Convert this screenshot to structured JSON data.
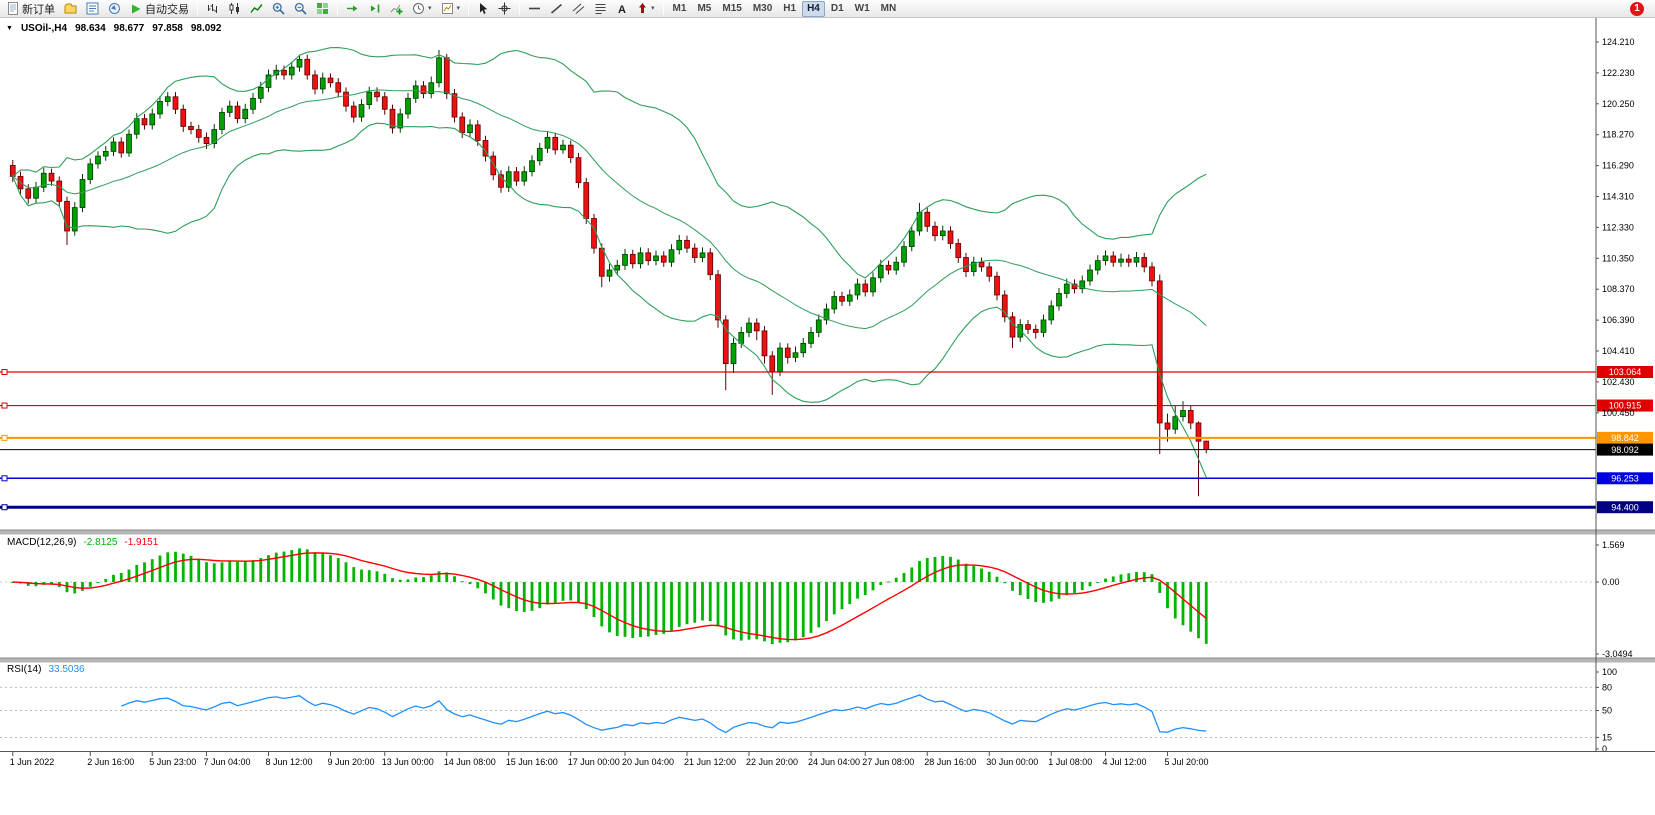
{
  "toolbar": {
    "new_order": "新订单",
    "auto_trading": "自动交易",
    "timeframes": [
      "M1",
      "M5",
      "M15",
      "M30",
      "H1",
      "H4",
      "D1",
      "W1",
      "MN"
    ],
    "active_timeframe": "H4",
    "notification_count": "1",
    "icons": [
      "new-order-document",
      "profiles-folder",
      "market-watch",
      "navigator",
      "auto-trading-play",
      "bar-chart",
      "candlestick-chart",
      "line-chart",
      "zoom-in",
      "zoom-out",
      "tile-windows",
      "auto-scroll",
      "chart-shift",
      "add-indicator",
      "periods-clock",
      "templates",
      "cursor",
      "crosshair",
      "horizontal-line",
      "trendline",
      "equidistant-channel",
      "fibonacci",
      "text",
      "arrows",
      "notification"
    ]
  },
  "chart_header": {
    "symbol_period": "USOil-,H4",
    "open": "98.634",
    "high": "98.677",
    "low": "97.858",
    "close": "98.092"
  },
  "price_axis": {
    "labels": [
      "124.210",
      "122.230",
      "120.250",
      "118.270",
      "116.290",
      "114.310",
      "112.330",
      "110.350",
      "108.370",
      "106.390",
      "104.410",
      "102.430",
      "100.450"
    ]
  },
  "macd_panel": {
    "label": "MACD(12,26,9)",
    "value_main": "-2.8125",
    "value_signal": "-1.9151",
    "axis_labels": [
      "1.569",
      "0.00",
      "-3.0494"
    ]
  },
  "rsi_panel": {
    "label": "RSI(14)",
    "value": "33.5036",
    "axis_labels": [
      "100",
      "80",
      "50",
      "15",
      "0"
    ]
  },
  "time_axis": {
    "labels": [
      {
        "text": "1 Jun 2022",
        "bar": 0
      },
      {
        "text": "2 Jun 16:00",
        "bar": 10
      },
      {
        "text": "5 Jun 23:00",
        "bar": 18
      },
      {
        "text": "7 Jun 04:00",
        "bar": 25
      },
      {
        "text": "8 Jun 12:00",
        "bar": 33
      },
      {
        "text": "9 Jun 20:00",
        "bar": 41
      },
      {
        "text": "13 Jun 00:00",
        "bar": 48
      },
      {
        "text": "14 Jun 08:00",
        "bar": 56
      },
      {
        "text": "15 Jun 16:00",
        "bar": 64
      },
      {
        "text": "17 Jun 00:00",
        "bar": 72
      },
      {
        "text": "20 Jun 04:00",
        "bar": 79
      },
      {
        "text": "21 Jun 12:00",
        "bar": 87
      },
      {
        "text": "22 Jun 20:00",
        "bar": 95
      },
      {
        "text": "24 Jun 04:00",
        "bar": 103
      },
      {
        "text": "27 Jun 08:00",
        "bar": 110
      },
      {
        "text": "28 Jun 16:00",
        "bar": 118
      },
      {
        "text": "30 Jun 00:00",
        "bar": 126
      },
      {
        "text": "1 Jul 08:00",
        "bar": 134
      },
      {
        "text": "4 Jul 12:00",
        "bar": 141
      },
      {
        "text": "5 Jul 20:00",
        "bar": 149
      }
    ]
  },
  "colors": {
    "bull": {
      "fill": "#00a000",
      "border": "#003c00"
    },
    "bear": {
      "fill": "#ee1111",
      "border": "#5d0000"
    },
    "bollinger": "#2e9e5b",
    "macd_histogram": "#00b400",
    "macd_signal": "#ff0000",
    "rsi": "#1e90ff",
    "axis_line": "#555555",
    "separator": "#b6b6b6"
  },
  "chart_data": {
    "type": "candlestick",
    "symbol": "USOil-",
    "timeframe": "H4",
    "y_axis": {
      "top_value": 124.21,
      "step": 1.98
    },
    "bars_ohlc": [
      [
        116.3,
        116.65,
        115.25,
        115.6
      ],
      [
        115.6,
        115.9,
        114.45,
        114.8
      ],
      [
        114.8,
        115.1,
        113.85,
        114.2
      ],
      [
        114.2,
        115.25,
        113.9,
        114.9
      ],
      [
        114.9,
        116.15,
        114.6,
        115.8
      ],
      [
        115.8,
        116.1,
        115.0,
        115.3
      ],
      [
        115.3,
        115.6,
        113.65,
        114.0
      ],
      [
        114.0,
        114.3,
        111.2,
        112.1
      ],
      [
        112.1,
        113.95,
        111.8,
        113.6
      ],
      [
        113.6,
        115.75,
        113.3,
        115.4
      ],
      [
        115.4,
        116.75,
        115.1,
        116.4
      ],
      [
        116.4,
        117.2,
        116.1,
        116.9
      ],
      [
        116.9,
        117.55,
        116.6,
        117.2
      ],
      [
        117.2,
        118.1,
        116.9,
        117.8
      ],
      [
        117.8,
        118.1,
        116.8,
        117.1
      ],
      [
        117.1,
        118.6,
        116.85,
        118.3
      ],
      [
        118.3,
        119.65,
        118.0,
        119.3
      ],
      [
        119.3,
        119.6,
        118.6,
        118.9
      ],
      [
        118.9,
        119.95,
        118.6,
        119.6
      ],
      [
        119.6,
        120.75,
        119.3,
        120.4
      ],
      [
        120.4,
        121.0,
        120.1,
        120.7
      ],
      [
        120.7,
        121.0,
        119.6,
        119.9
      ],
      [
        119.9,
        120.2,
        118.45,
        118.8
      ],
      [
        118.8,
        119.1,
        118.3,
        118.6
      ],
      [
        118.6,
        118.9,
        117.75,
        118.1
      ],
      [
        118.1,
        118.4,
        117.35,
        117.7
      ],
      [
        117.7,
        118.95,
        117.4,
        118.6
      ],
      [
        118.6,
        120.0,
        118.3,
        119.7
      ],
      [
        119.7,
        120.45,
        119.4,
        120.1
      ],
      [
        120.1,
        120.4,
        119.0,
        119.3
      ],
      [
        119.3,
        120.25,
        119.0,
        119.9
      ],
      [
        119.9,
        120.95,
        119.6,
        120.6
      ],
      [
        120.6,
        121.65,
        120.3,
        121.3
      ],
      [
        121.3,
        122.45,
        121.0,
        122.1
      ],
      [
        122.1,
        122.75,
        121.8,
        122.4
      ],
      [
        122.4,
        122.7,
        121.8,
        122.1
      ],
      [
        122.1,
        122.95,
        121.8,
        122.6
      ],
      [
        122.6,
        123.4,
        122.3,
        123.1
      ],
      [
        123.1,
        123.4,
        121.8,
        122.1
      ],
      [
        122.1,
        122.4,
        120.85,
        121.2
      ],
      [
        121.2,
        122.25,
        120.9,
        121.9
      ],
      [
        121.9,
        122.2,
        121.3,
        121.6
      ],
      [
        121.6,
        121.9,
        120.65,
        121.0
      ],
      [
        121.0,
        121.3,
        119.75,
        120.1
      ],
      [
        120.1,
        120.4,
        119.05,
        119.4
      ],
      [
        119.4,
        120.55,
        119.1,
        120.2
      ],
      [
        120.2,
        121.35,
        119.9,
        121.0
      ],
      [
        121.0,
        121.3,
        120.4,
        120.7
      ],
      [
        120.7,
        121.0,
        119.55,
        119.9
      ],
      [
        119.9,
        120.2,
        118.35,
        118.7
      ],
      [
        118.7,
        119.95,
        118.4,
        119.6
      ],
      [
        119.6,
        120.95,
        119.3,
        120.6
      ],
      [
        120.6,
        121.75,
        120.3,
        121.4
      ],
      [
        121.4,
        121.7,
        120.6,
        120.9
      ],
      [
        120.9,
        122.0,
        120.6,
        121.6
      ],
      [
        121.6,
        123.7,
        121.3,
        123.2
      ],
      [
        123.2,
        123.45,
        120.55,
        120.9
      ],
      [
        120.9,
        121.2,
        119.05,
        119.4
      ],
      [
        119.4,
        119.7,
        118.05,
        118.4
      ],
      [
        118.4,
        119.25,
        118.1,
        118.9
      ],
      [
        118.9,
        119.2,
        117.55,
        117.9
      ],
      [
        117.9,
        118.2,
        116.55,
        116.9
      ],
      [
        116.9,
        117.2,
        115.35,
        115.7
      ],
      [
        115.7,
        116.0,
        114.55,
        114.9
      ],
      [
        114.9,
        116.25,
        114.6,
        115.9
      ],
      [
        115.9,
        116.2,
        115.0,
        115.3
      ],
      [
        115.3,
        116.25,
        115.0,
        115.9
      ],
      [
        115.9,
        116.95,
        115.6,
        116.6
      ],
      [
        116.6,
        117.75,
        116.3,
        117.4
      ],
      [
        117.4,
        118.45,
        117.1,
        118.1
      ],
      [
        118.1,
        118.4,
        117.0,
        117.3
      ],
      [
        117.3,
        117.95,
        117.05,
        117.6
      ],
      [
        117.6,
        117.9,
        116.45,
        116.8
      ],
      [
        116.8,
        117.1,
        114.85,
        115.2
      ],
      [
        115.2,
        115.5,
        112.55,
        112.9
      ],
      [
        112.9,
        113.2,
        110.65,
        111.0
      ],
      [
        111.0,
        111.3,
        108.5,
        109.2
      ],
      [
        109.2,
        110.0,
        108.85,
        109.6
      ],
      [
        109.6,
        110.25,
        109.3,
        109.9
      ],
      [
        109.9,
        110.95,
        109.6,
        110.6
      ],
      [
        110.6,
        110.9,
        109.7,
        110.0
      ],
      [
        110.0,
        111.05,
        109.7,
        110.7
      ],
      [
        110.7,
        111.0,
        109.9,
        110.2
      ],
      [
        110.2,
        110.85,
        109.9,
        110.5
      ],
      [
        110.5,
        110.8,
        109.8,
        110.1
      ],
      [
        110.1,
        111.25,
        109.8,
        110.9
      ],
      [
        110.9,
        111.85,
        110.6,
        111.5
      ],
      [
        111.5,
        111.8,
        110.7,
        111.0
      ],
      [
        111.0,
        111.3,
        110.05,
        110.4
      ],
      [
        110.4,
        111.05,
        110.1,
        110.7
      ],
      [
        110.7,
        111.0,
        108.95,
        109.3
      ],
      [
        109.3,
        109.6,
        105.9,
        106.4
      ],
      [
        106.4,
        106.7,
        101.9,
        103.6
      ],
      [
        103.6,
        105.25,
        103.0,
        104.9
      ],
      [
        104.9,
        105.95,
        104.6,
        105.6
      ],
      [
        105.6,
        106.55,
        105.3,
        106.2
      ],
      [
        106.2,
        106.5,
        105.1,
        105.7
      ],
      [
        105.7,
        106.0,
        103.6,
        104.1
      ],
      [
        104.1,
        104.4,
        101.6,
        103.1
      ],
      [
        103.1,
        104.95,
        102.8,
        104.6
      ],
      [
        104.6,
        104.9,
        103.6,
        104.0
      ],
      [
        104.0,
        104.7,
        103.7,
        104.3
      ],
      [
        104.3,
        105.25,
        104.0,
        104.9
      ],
      [
        104.9,
        105.95,
        104.6,
        105.6
      ],
      [
        105.6,
        106.75,
        105.3,
        106.4
      ],
      [
        106.4,
        107.45,
        106.1,
        107.1
      ],
      [
        107.1,
        108.25,
        106.8,
        107.9
      ],
      [
        107.9,
        108.2,
        107.3,
        107.6
      ],
      [
        107.6,
        108.35,
        107.3,
        108.0
      ],
      [
        108.0,
        109.05,
        107.7,
        108.7
      ],
      [
        108.7,
        109.0,
        107.9,
        108.2
      ],
      [
        108.2,
        109.45,
        107.9,
        109.1
      ],
      [
        109.1,
        110.25,
        108.8,
        109.9
      ],
      [
        109.9,
        110.2,
        109.3,
        109.6
      ],
      [
        109.6,
        110.45,
        109.3,
        110.1
      ],
      [
        110.1,
        111.45,
        109.8,
        111.1
      ],
      [
        111.1,
        112.45,
        110.8,
        112.1
      ],
      [
        112.1,
        113.9,
        111.8,
        113.3
      ],
      [
        113.3,
        113.6,
        112.05,
        112.4
      ],
      [
        112.4,
        112.7,
        111.45,
        111.8
      ],
      [
        111.8,
        112.45,
        111.5,
        112.1
      ],
      [
        112.1,
        112.4,
        110.95,
        111.3
      ],
      [
        111.3,
        111.6,
        110.05,
        110.4
      ],
      [
        110.4,
        110.7,
        109.15,
        109.5
      ],
      [
        109.5,
        110.45,
        109.2,
        110.1
      ],
      [
        110.1,
        110.4,
        109.5,
        109.8
      ],
      [
        109.8,
        110.1,
        108.85,
        109.2
      ],
      [
        109.2,
        109.5,
        107.65,
        108.0
      ],
      [
        108.0,
        108.3,
        106.25,
        106.6
      ],
      [
        106.6,
        106.9,
        104.6,
        105.3
      ],
      [
        105.3,
        106.45,
        105.0,
        106.1
      ],
      [
        106.1,
        106.4,
        105.5,
        105.8
      ],
      [
        105.8,
        106.1,
        105.2,
        105.6
      ],
      [
        105.6,
        106.75,
        105.3,
        106.4
      ],
      [
        106.4,
        107.65,
        106.1,
        107.3
      ],
      [
        107.3,
        108.45,
        107.0,
        108.1
      ],
      [
        108.1,
        109.05,
        107.8,
        108.7
      ],
      [
        108.7,
        109.0,
        108.1,
        108.4
      ],
      [
        108.4,
        109.25,
        108.1,
        108.9
      ],
      [
        108.9,
        109.95,
        108.6,
        109.6
      ],
      [
        109.6,
        110.55,
        109.3,
        110.2
      ],
      [
        110.2,
        110.85,
        109.9,
        110.5
      ],
      [
        110.5,
        110.8,
        109.8,
        110.1
      ],
      [
        110.1,
        110.65,
        109.8,
        110.3
      ],
      [
        110.3,
        110.6,
        109.8,
        110.1
      ],
      [
        110.1,
        110.75,
        109.8,
        110.4
      ],
      [
        110.4,
        110.7,
        109.45,
        109.8
      ],
      [
        109.8,
        110.1,
        108.55,
        108.9
      ],
      [
        108.9,
        109.3,
        97.8,
        99.8
      ],
      [
        99.8,
        100.4,
        98.6,
        99.4
      ],
      [
        99.4,
        100.9,
        99.1,
        100.2
      ],
      [
        100.2,
        101.2,
        99.9,
        100.6
      ],
      [
        100.6,
        100.95,
        99.4,
        99.8
      ],
      [
        99.8,
        99.9,
        95.1,
        98.63
      ],
      [
        98.634,
        98.677,
        97.858,
        98.092
      ]
    ],
    "indicators": {
      "bollinger": {
        "period": 20,
        "deviation": 2
      },
      "macd": {
        "fast": 12,
        "slow": 26,
        "signal": 9,
        "current_main": -2.8125,
        "current_signal": -1.9151
      },
      "rsi": {
        "period": 14,
        "current": 33.5036,
        "levels": [
          80,
          50,
          15
        ]
      }
    },
    "hlines": [
      {
        "price": 103.064,
        "color": "#e00000",
        "width": 1.2,
        "badge": "103.064"
      },
      {
        "price": 100.915,
        "color": "#e00000",
        "width": 1.2,
        "badge": "100.915"
      },
      {
        "price": 98.842,
        "color": "#ff9500",
        "width": 2,
        "badge": "98.842"
      },
      {
        "price": 96.253,
        "color": "#0000e0",
        "width": 1.5,
        "badge": "96.253"
      },
      {
        "price": 94.4,
        "color": "#000080",
        "width": 3,
        "badge": "94.400"
      }
    ],
    "current_price": {
      "value": 98.092,
      "badge": "98.092",
      "color": "#000000"
    }
  }
}
